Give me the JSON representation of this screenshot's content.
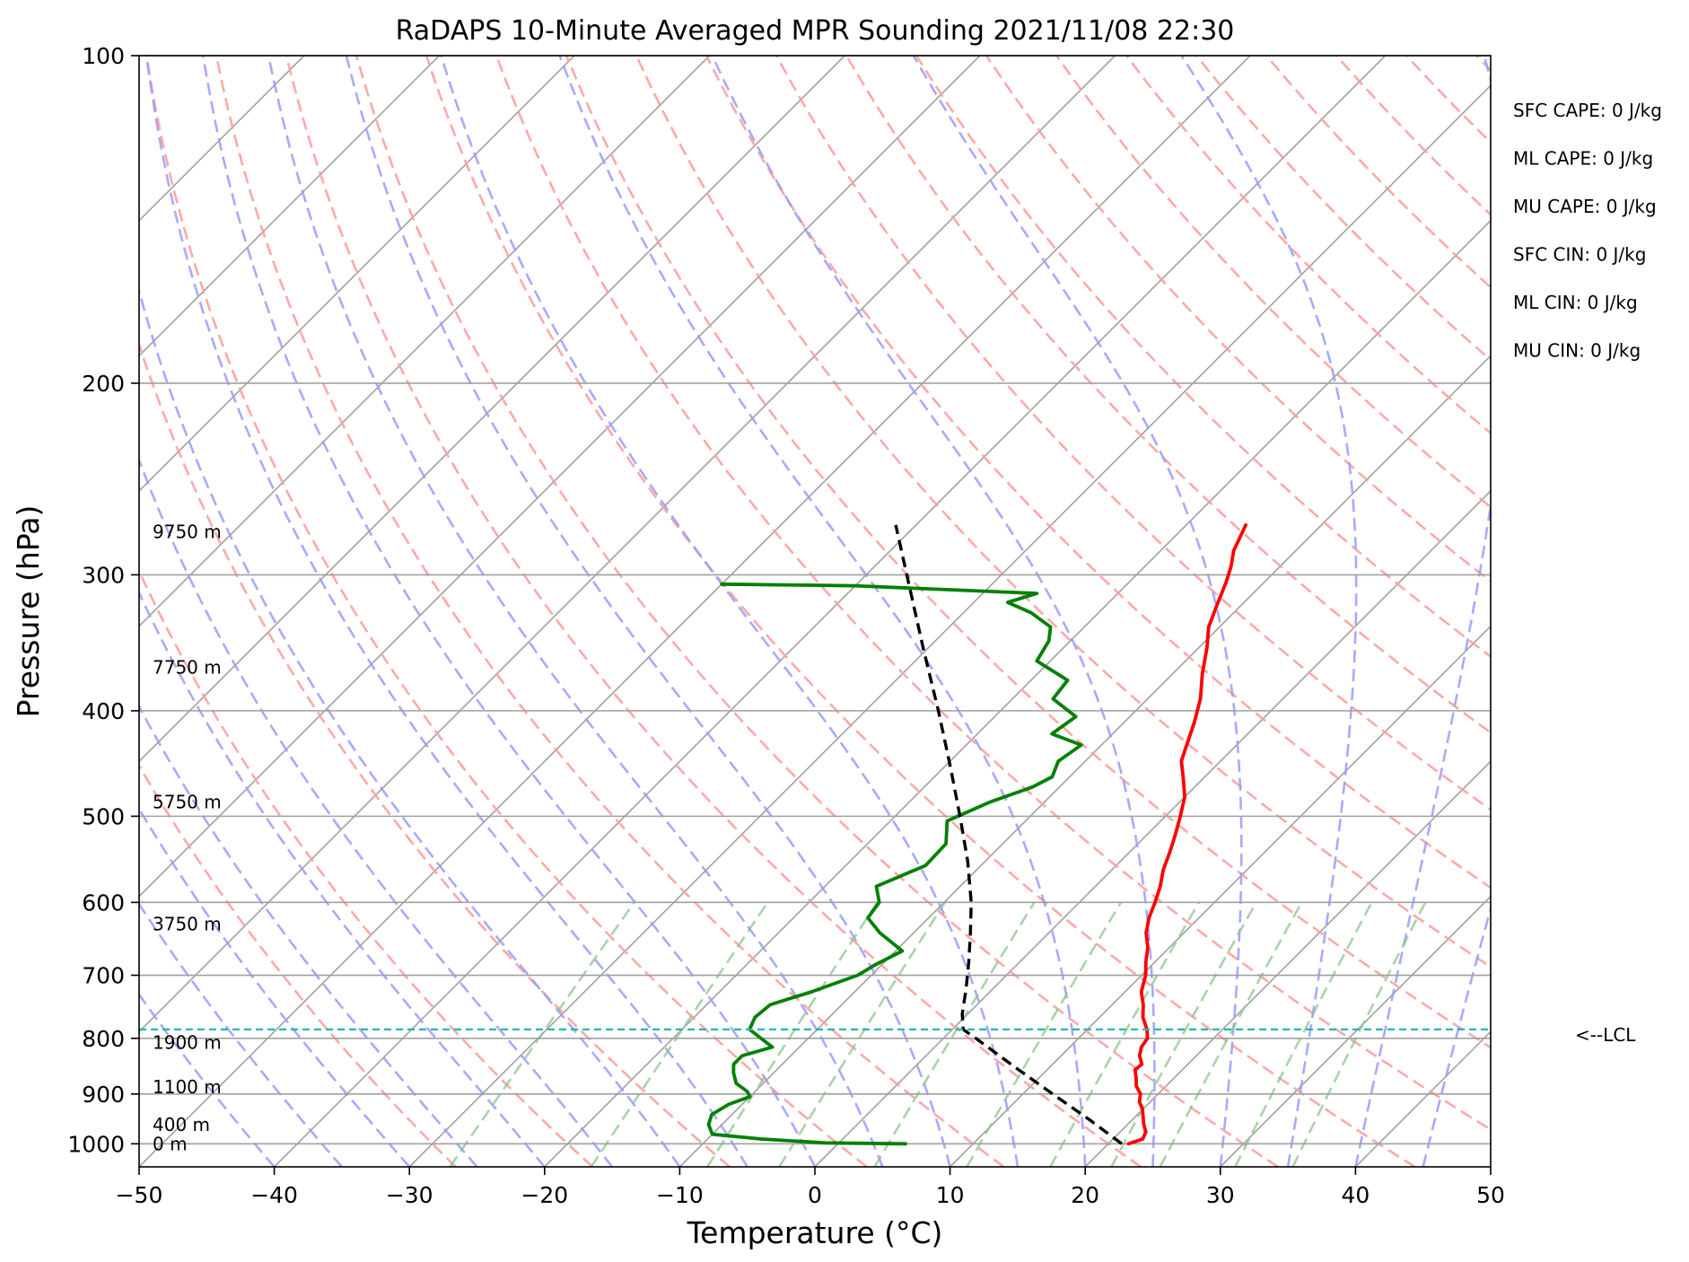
{
  "chart_data": {
    "type": "line",
    "title": "RaDAPS 10-Minute Averaged MPR Sounding 2021/11/08 22:30",
    "xlabel": "Temperature (°C)",
    "ylabel": "Pressure (hPa)",
    "xlim": [
      -50,
      50
    ],
    "ylim": [
      1050,
      100
    ],
    "y_scale": "log",
    "x_ticks": [
      -50,
      -40,
      -30,
      -20,
      -10,
      0,
      10,
      20,
      30,
      40,
      50
    ],
    "x_tick_labels": [
      "−50",
      "−40",
      "−30",
      "−20",
      "−10",
      "0",
      "10",
      "20",
      "30",
      "40",
      "50"
    ],
    "y_ticks": [
      100,
      200,
      300,
      400,
      500,
      600,
      700,
      800,
      900,
      1000
    ],
    "y_tick_labels": [
      "100",
      "200",
      "300",
      "400",
      "500",
      "600",
      "700",
      "800",
      "900",
      "1000"
    ],
    "grid": true,
    "skew": "skew-T (isotherms slanted)",
    "background_lines": {
      "isotherms_color": "#a0a0a0",
      "dry_adiabats_color": "#ff9e9e",
      "moist_adiabats_color": "#9a9aff",
      "mixing_ratio_color": "#8cc48c"
    },
    "series": [
      {
        "name": "Temperature",
        "color": "#ff0000",
        "points": [
          [
            1000,
            21.5
          ],
          [
            990,
            22.2
          ],
          [
            975,
            21.9
          ],
          [
            960,
            21.2
          ],
          [
            945,
            20.6
          ],
          [
            930,
            20.0
          ],
          [
            915,
            19.2
          ],
          [
            900,
            18.7
          ],
          [
            885,
            17.8
          ],
          [
            870,
            17.2
          ],
          [
            855,
            16.5
          ],
          [
            845,
            16.6
          ],
          [
            830,
            15.8
          ],
          [
            815,
            15.3
          ],
          [
            800,
            15.1
          ],
          [
            785,
            14.4
          ],
          [
            765,
            13.2
          ],
          [
            745,
            12.3
          ],
          [
            725,
            11.2
          ],
          [
            700,
            10.3
          ],
          [
            680,
            9.3
          ],
          [
            660,
            8.4
          ],
          [
            640,
            7.2
          ],
          [
            620,
            6.3
          ],
          [
            600,
            5.6
          ],
          [
            580,
            4.8
          ],
          [
            560,
            3.8
          ],
          [
            540,
            3.0
          ],
          [
            520,
            2.1
          ],
          [
            500,
            1.1
          ],
          [
            480,
            0.0
          ],
          [
            460,
            -1.6
          ],
          [
            445,
            -2.9
          ],
          [
            430,
            -3.7
          ],
          [
            410,
            -4.8
          ],
          [
            390,
            -6.1
          ],
          [
            370,
            -7.8
          ],
          [
            350,
            -9.4
          ],
          [
            335,
            -10.8
          ],
          [
            320,
            -11.8
          ],
          [
            305,
            -12.8
          ],
          [
            295,
            -13.6
          ],
          [
            285,
            -14.6
          ],
          [
            270,
            -15.6
          ]
        ]
      },
      {
        "name": "Dewpoint",
        "color": "#008000",
        "points": [
          [
            1000,
            5.0
          ],
          [
            998,
            -1.0
          ],
          [
            990,
            -6.0
          ],
          [
            980,
            -10.0
          ],
          [
            960,
            -11.0
          ],
          [
            940,
            -11.5
          ],
          [
            920,
            -11.0
          ],
          [
            905,
            -10.0
          ],
          [
            895,
            -10.6
          ],
          [
            880,
            -12.0
          ],
          [
            860,
            -13.0
          ],
          [
            845,
            -13.6
          ],
          [
            830,
            -13.6
          ],
          [
            815,
            -12.0
          ],
          [
            800,
            -13.5
          ],
          [
            785,
            -15.0
          ],
          [
            765,
            -15.5
          ],
          [
            745,
            -15.3
          ],
          [
            725,
            -13.2
          ],
          [
            700,
            -11.0
          ],
          [
            685,
            -10.5
          ],
          [
            665,
            -9.5
          ],
          [
            640,
            -12.5
          ],
          [
            620,
            -14.5
          ],
          [
            600,
            -14.8
          ],
          [
            580,
            -16.2
          ],
          [
            555,
            -14.1
          ],
          [
            530,
            -14.2
          ],
          [
            505,
            -15.8
          ],
          [
            485,
            -14.0
          ],
          [
            470,
            -12.0
          ],
          [
            460,
            -11.3
          ],
          [
            445,
            -12.0
          ],
          [
            430,
            -11.5
          ],
          [
            420,
            -14.5
          ],
          [
            405,
            -14.0
          ],
          [
            390,
            -17.0
          ],
          [
            375,
            -17.3
          ],
          [
            360,
            -21.0
          ],
          [
            345,
            -21.6
          ],
          [
            335,
            -22.5
          ],
          [
            325,
            -25.0
          ],
          [
            318,
            -27.5
          ],
          [
            312,
            -26.0
          ],
          [
            307,
            -40.0
          ],
          [
            306,
            -50.0
          ]
        ]
      },
      {
        "name": "Parcel",
        "color": "#000000",
        "dashed": true,
        "points": [
          [
            1000,
            21.0
          ],
          [
            950,
            16.8
          ],
          [
            900,
            12.2
          ],
          [
            850,
            7.4
          ],
          [
            800,
            2.4
          ],
          [
            785,
            0.8
          ],
          [
            760,
            -0.4
          ],
          [
            720,
            -2.0
          ],
          [
            680,
            -3.8
          ],
          [
            640,
            -5.8
          ],
          [
            600,
            -8.0
          ],
          [
            550,
            -11.3
          ],
          [
            500,
            -15.2
          ],
          [
            450,
            -19.6
          ],
          [
            400,
            -24.6
          ],
          [
            350,
            -30.4
          ],
          [
            300,
            -37.0
          ],
          [
            270,
            -41.5
          ]
        ]
      }
    ],
    "lcl_pressure": 785,
    "lcl_label": "<--LCL",
    "lcl_color": "#20b8b8",
    "height_labels": [
      {
        "pressure": 1000,
        "label": "0 m"
      },
      {
        "pressure": 960,
        "label": "400 m"
      },
      {
        "pressure": 887,
        "label": "1100 m"
      },
      {
        "pressure": 807,
        "label": "1900 m"
      },
      {
        "pressure": 628,
        "label": "3750 m"
      },
      {
        "pressure": 485,
        "label": "5750 m"
      },
      {
        "pressure": 365,
        "label": "7750 m"
      },
      {
        "pressure": 274,
        "label": "9750 m"
      }
    ],
    "indices": [
      "SFC CAPE: 0 J/kg",
      "ML CAPE: 0 J/kg",
      "MU CAPE: 0 J/kg",
      "SFC CIN: 0 J/kg",
      "ML CIN: 0 J/kg",
      "MU CIN: 0 J/kg"
    ]
  }
}
